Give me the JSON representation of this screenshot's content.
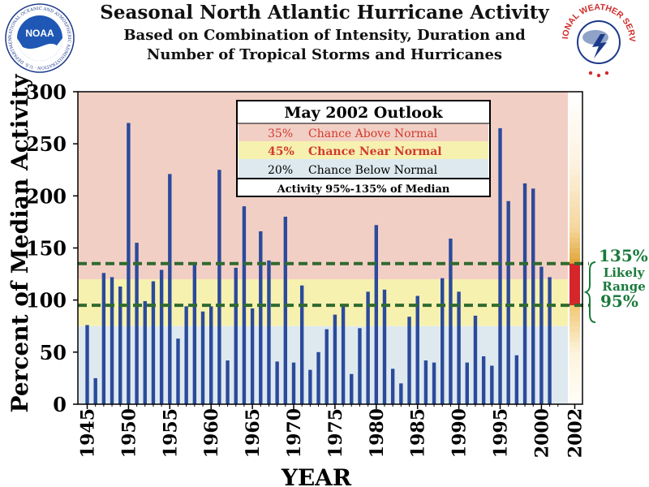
{
  "header": {
    "title": "Seasonal North Atlantic Hurricane Activity",
    "subtitle_line1": "Based on Combination of Intensity, Duration and",
    "subtitle_line2": "Number of Tropical Storms and Hurricanes"
  },
  "logos": {
    "left": {
      "text": "NOAA",
      "ring_text": "NATIONAL OCEANIC AND ATMOSPHERIC ADMINISTRATION · U.S. DEPARTMENT OF COMMERCE"
    },
    "right": {
      "ring_text": "NATIONAL WEATHER SERVICE"
    }
  },
  "outlook": {
    "title": "May 2002 Outlook",
    "above_pct": "35%",
    "above_label": "Chance Above Normal",
    "near_pct": "45%",
    "near_label": "Chance Near Normal",
    "below_pct": "20%",
    "below_label": "Chance Below Normal",
    "activity": "Activity 95%-135% of Median"
  },
  "likely_range": {
    "upper": "135%",
    "word1": "Likely",
    "word2": "Range",
    "lower": "95%"
  },
  "colors": {
    "bar": "#2b4a9b",
    "above_normal_band": "#f2cfc5",
    "near_normal_band": "#f7f1b0",
    "below_normal_band": "#dde9ef",
    "dashed_line": "#2f6a2f",
    "range_bar": "#d7262b",
    "range_text": "#1a7a3c",
    "above_text": "#d13a2e",
    "near_text": "#d13a2e"
  },
  "chart_data": {
    "type": "bar",
    "xlabel": "YEAR",
    "ylabel": "Percent of Median Activity",
    "ylim": [
      0,
      300
    ],
    "yticks": [
      0,
      50,
      100,
      150,
      200,
      250,
      300
    ],
    "xlim": [
      1945,
      2002
    ],
    "xticks": [
      "1945",
      "1950",
      "1955",
      "1960",
      "1965",
      "1970",
      "1975",
      "1980",
      "1985",
      "1990",
      "1995",
      "2000",
      "2002"
    ],
    "bands": [
      {
        "name": "Below Normal",
        "from": 0,
        "to": 75
      },
      {
        "name": "Near Normal",
        "from": 75,
        "to": 120
      },
      {
        "name": "Above Normal",
        "from": 120,
        "to": 300
      }
    ],
    "reference_lines": [
      135,
      95
    ],
    "likely_range": [
      95,
      135
    ],
    "forecast_year": 2002,
    "years": [
      1945,
      1946,
      1947,
      1948,
      1949,
      1950,
      1951,
      1952,
      1953,
      1954,
      1955,
      1956,
      1957,
      1958,
      1959,
      1960,
      1961,
      1962,
      1963,
      1964,
      1965,
      1966,
      1967,
      1968,
      1969,
      1970,
      1971,
      1972,
      1973,
      1974,
      1975,
      1976,
      1977,
      1978,
      1979,
      1980,
      1981,
      1982,
      1983,
      1984,
      1985,
      1986,
      1987,
      1988,
      1989,
      1990,
      1991,
      1992,
      1993,
      1994,
      1995,
      1996,
      1997,
      1998,
      1999,
      2000,
      2001
    ],
    "values": [
      76,
      25,
      126,
      122,
      113,
      270,
      155,
      99,
      118,
      129,
      221,
      63,
      94,
      135,
      89,
      94,
      225,
      42,
      131,
      190,
      92,
      166,
      138,
      41,
      180,
      40,
      114,
      33,
      50,
      72,
      86,
      96,
      29,
      73,
      108,
      172,
      110,
      34,
      20,
      84,
      104,
      42,
      40,
      121,
      159,
      108,
      40,
      85,
      46,
      37,
      265,
      195,
      47,
      212,
      207,
      132,
      122
    ]
  }
}
